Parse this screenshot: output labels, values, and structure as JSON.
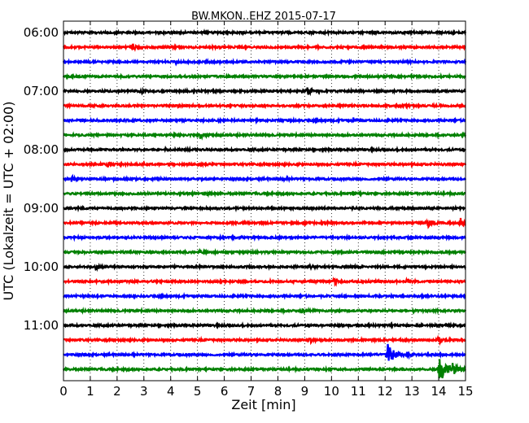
{
  "chart_data": {
    "type": "line",
    "title": "BW.MKON..EHZ 2015-07-17",
    "xlabel": "Zeit  [min]",
    "ylabel": "UTC (Lokalzeit = UTC + 02:00)",
    "xlim": [
      0,
      15
    ],
    "x_ticks": [
      "0",
      "1",
      "2",
      "3",
      "4",
      "5",
      "6",
      "7",
      "8",
      "9",
      "10",
      "11",
      "12",
      "13",
      "14",
      "15"
    ],
    "y_tick_labels": [
      "06:00",
      "07:00",
      "08:00",
      "09:00",
      "10:00",
      "11:00"
    ],
    "grid": "vertical dotted",
    "trace_interval_min": 15,
    "trace_colors": [
      "#000000",
      "#ff0000",
      "#0000ff",
      "#008000"
    ],
    "series": [
      {
        "start": "06:00",
        "events": []
      },
      {
        "start": "06:15",
        "events": [
          {
            "t": 2.6,
            "amp": 0.35
          }
        ]
      },
      {
        "start": "06:30",
        "events": [
          {
            "t": 4.2,
            "amp": 0.3
          }
        ]
      },
      {
        "start": "06:45",
        "events": []
      },
      {
        "start": "07:00",
        "events": [
          {
            "t": 2.9,
            "amp": 0.3
          },
          {
            "t": 9.1,
            "amp": 0.45
          }
        ]
      },
      {
        "start": "07:15",
        "events": [
          {
            "t": 12.5,
            "amp": 0.3
          }
        ]
      },
      {
        "start": "07:30",
        "events": [
          {
            "t": 10.8,
            "amp": 0.3
          }
        ]
      },
      {
        "start": "07:45",
        "events": [
          {
            "t": 5.1,
            "amp": 0.45
          }
        ]
      },
      {
        "start": "08:00",
        "events": []
      },
      {
        "start": "08:15",
        "events": [
          {
            "t": 1.6,
            "amp": 0.35
          }
        ]
      },
      {
        "start": "08:30",
        "events": [
          {
            "t": 0.3,
            "amp": 0.35
          },
          {
            "t": 8.2,
            "amp": 0.25
          }
        ]
      },
      {
        "start": "08:45",
        "events": [
          {
            "t": 5.3,
            "amp": 0.4
          },
          {
            "t": 10.8,
            "amp": 0.25
          }
        ]
      },
      {
        "start": "09:00",
        "events": []
      },
      {
        "start": "09:15",
        "events": [
          {
            "t": 13.6,
            "amp": 0.6
          },
          {
            "t": 14.8,
            "amp": 0.6
          }
        ]
      },
      {
        "start": "09:30",
        "events": []
      },
      {
        "start": "09:45",
        "events": [
          {
            "t": 5.1,
            "amp": 0.3
          }
        ]
      },
      {
        "start": "10:00",
        "events": [
          {
            "t": 1.2,
            "amp": 0.25
          },
          {
            "t": 9.2,
            "amp": 0.3
          }
        ]
      },
      {
        "start": "10:15",
        "events": [
          {
            "t": 10.1,
            "amp": 0.4
          },
          {
            "t": 12.8,
            "amp": 0.3
          }
        ]
      },
      {
        "start": "10:30",
        "events": []
      },
      {
        "start": "10:45",
        "events": [
          {
            "t": 8.9,
            "amp": 0.35
          }
        ]
      },
      {
        "start": "11:00",
        "events": []
      },
      {
        "start": "11:15",
        "events": [
          {
            "t": 9.2,
            "amp": 0.35
          },
          {
            "t": 14.0,
            "amp": 0.55
          }
        ]
      },
      {
        "start": "11:30",
        "events": [
          {
            "t": 12.1,
            "amp": 1.3
          },
          {
            "t": 12.8,
            "amp": 0.3
          }
        ]
      },
      {
        "start": "11:45",
        "events": [
          {
            "t": 14.0,
            "amp": 1.8
          },
          {
            "t": 14.5,
            "amp": 0.6
          }
        ]
      }
    ]
  }
}
